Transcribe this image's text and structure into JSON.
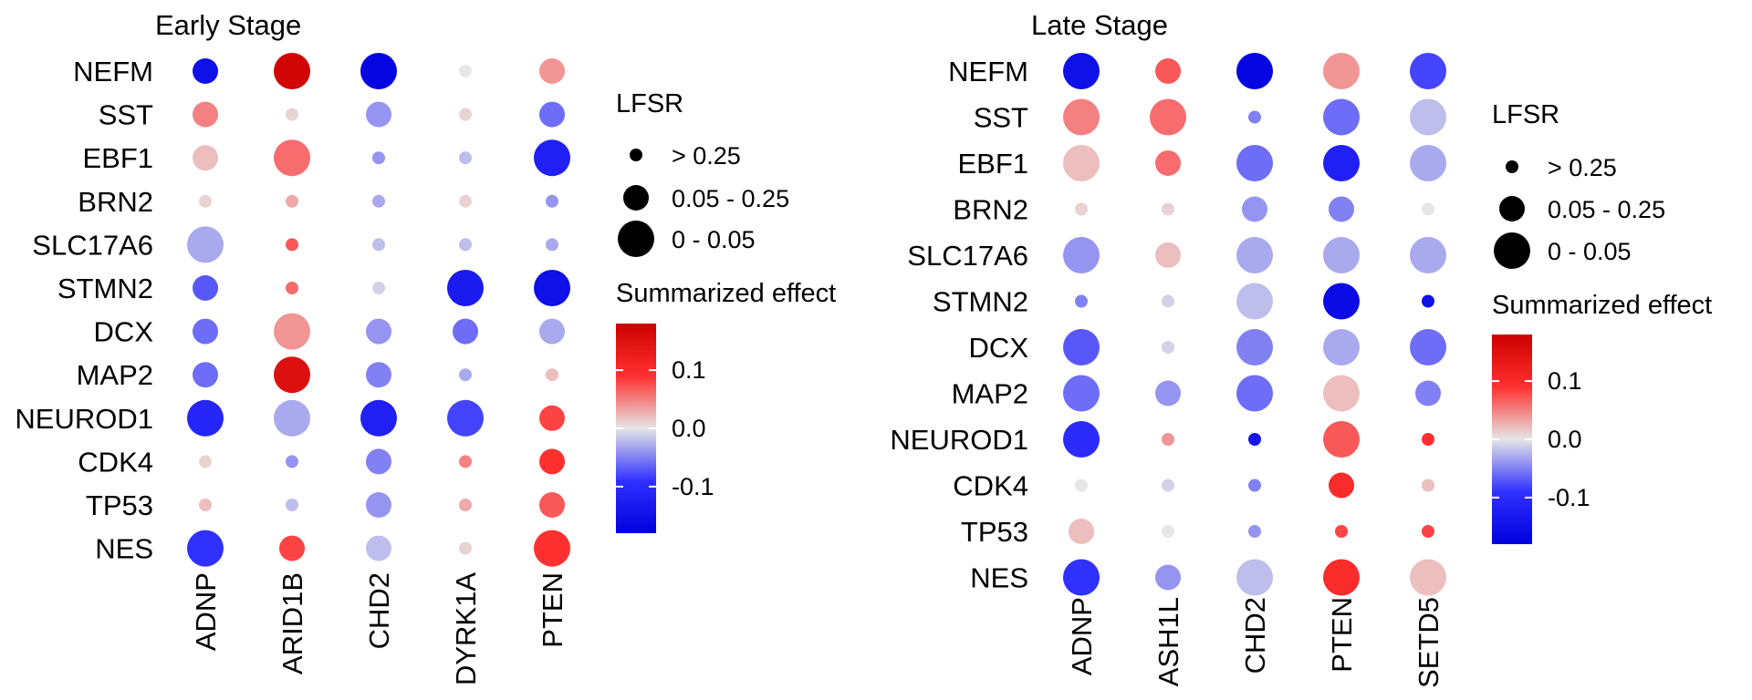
{
  "chart_data": [
    {
      "type": "dot-matrix",
      "title": "Early Stage",
      "rows": [
        "NEFM",
        "SST",
        "EBF1",
        "BRN2",
        "SLC17A6",
        "STMN2",
        "DCX",
        "MAP2",
        "NEUROD1",
        "CDK4",
        "TP53",
        "NES"
      ],
      "columns": [
        "ADNP",
        "ARID1B",
        "CHD2",
        "DYRK1A",
        "PTEN"
      ],
      "effect": [
        [
          -0.15,
          0.17,
          -0.17,
          0.0,
          0.04
        ],
        [
          0.05,
          0.01,
          -0.04,
          0.01,
          -0.06
        ],
        [
          0.02,
          0.06,
          -0.04,
          -0.02,
          -0.12
        ],
        [
          0.01,
          0.03,
          -0.03,
          0.01,
          -0.04
        ],
        [
          -0.03,
          0.07,
          -0.02,
          -0.02,
          -0.03
        ],
        [
          -0.07,
          0.06,
          -0.01,
          -0.13,
          -0.15
        ],
        [
          -0.06,
          0.04,
          -0.04,
          -0.06,
          -0.03
        ],
        [
          -0.06,
          0.15,
          -0.05,
          -0.03,
          0.02
        ],
        [
          -0.11,
          -0.03,
          -0.12,
          -0.08,
          0.08
        ],
        [
          0.01,
          -0.04,
          -0.05,
          0.05,
          0.09
        ],
        [
          0.02,
          -0.02,
          -0.04,
          0.03,
          0.07
        ],
        [
          -0.09,
          0.08,
          -0.02,
          0.01,
          0.09
        ]
      ],
      "lfsr": [
        [
          "0.05 - 0.25",
          "0 - 0.05",
          "0 - 0.05",
          "> 0.25",
          "0.05 - 0.25"
        ],
        [
          "0.05 - 0.25",
          "> 0.25",
          "0.05 - 0.25",
          "> 0.25",
          "0.05 - 0.25"
        ],
        [
          "0.05 - 0.25",
          "0 - 0.05",
          "> 0.25",
          "> 0.25",
          "0 - 0.05"
        ],
        [
          "> 0.25",
          "> 0.25",
          "> 0.25",
          "> 0.25",
          "> 0.25"
        ],
        [
          "0 - 0.05",
          "> 0.25",
          "> 0.25",
          "> 0.25",
          "> 0.25"
        ],
        [
          "0.05 - 0.25",
          "> 0.25",
          "> 0.25",
          "0 - 0.05",
          "0 - 0.05"
        ],
        [
          "0.05 - 0.25",
          "0 - 0.05",
          "0.05 - 0.25",
          "0.05 - 0.25",
          "0.05 - 0.25"
        ],
        [
          "0.05 - 0.25",
          "0 - 0.05",
          "0.05 - 0.25",
          "> 0.25",
          "> 0.25"
        ],
        [
          "0 - 0.05",
          "0 - 0.05",
          "0 - 0.05",
          "0 - 0.05",
          "0.05 - 0.25"
        ],
        [
          "> 0.25",
          "> 0.25",
          "0.05 - 0.25",
          "> 0.25",
          "0.05 - 0.25"
        ],
        [
          "> 0.25",
          "> 0.25",
          "0.05 - 0.25",
          "> 0.25",
          "0.05 - 0.25"
        ],
        [
          "0 - 0.05",
          "0.05 - 0.25",
          "0.05 - 0.25",
          "> 0.25",
          "0 - 0.05"
        ]
      ],
      "size_legend": {
        "title": "LFSR",
        "levels": [
          "> 0.25",
          "0.05 - 0.25",
          "0 - 0.05"
        ]
      },
      "color_legend": {
        "title": "Summarized effect",
        "range": [
          -0.18,
          0.18
        ],
        "ticks": [
          0.1,
          0.0,
          -0.1
        ],
        "tick_labels": [
          "0.1",
          "0.0",
          "-0.1"
        ],
        "low": "#0000dd",
        "mid": "#e6e6e6",
        "high": "#cc0000"
      }
    },
    {
      "type": "dot-matrix",
      "title": "Late Stage",
      "rows": [
        "NEFM",
        "SST",
        "EBF1",
        "BRN2",
        "SLC17A6",
        "STMN2",
        "DCX",
        "MAP2",
        "NEUROD1",
        "CDK4",
        "TP53",
        "NES"
      ],
      "columns": [
        "ADNP",
        "ASH1L",
        "CHD2",
        "PTEN",
        "SETD5"
      ],
      "effect": [
        [
          -0.15,
          0.07,
          -0.17,
          0.04,
          -0.08
        ],
        [
          0.05,
          0.06,
          -0.05,
          -0.06,
          -0.02
        ],
        [
          0.02,
          0.06,
          -0.06,
          -0.12,
          -0.03
        ],
        [
          0.01,
          0.01,
          -0.04,
          -0.05,
          0.0
        ],
        [
          -0.04,
          0.02,
          -0.03,
          -0.03,
          -0.03
        ],
        [
          -0.05,
          -0.01,
          -0.02,
          -0.16,
          -0.15
        ],
        [
          -0.07,
          -0.01,
          -0.05,
          -0.03,
          -0.06
        ],
        [
          -0.06,
          -0.04,
          -0.06,
          0.02,
          -0.05
        ],
        [
          -0.1,
          0.04,
          -0.14,
          0.07,
          0.09
        ],
        [
          0.0,
          -0.01,
          -0.05,
          0.1,
          0.02
        ],
        [
          0.02,
          0.0,
          -0.04,
          0.08,
          0.08
        ],
        [
          -0.09,
          -0.04,
          -0.02,
          0.1,
          0.02
        ]
      ],
      "lfsr": [
        [
          "0 - 0.05",
          "0.05 - 0.25",
          "0 - 0.05",
          "0 - 0.05",
          "0 - 0.05"
        ],
        [
          "0 - 0.05",
          "0 - 0.05",
          "> 0.25",
          "0 - 0.05",
          "0 - 0.05"
        ],
        [
          "0 - 0.05",
          "0.05 - 0.25",
          "0 - 0.05",
          "0 - 0.05",
          "0 - 0.05"
        ],
        [
          "> 0.25",
          "> 0.25",
          "0.05 - 0.25",
          "0.05 - 0.25",
          "> 0.25"
        ],
        [
          "0 - 0.05",
          "0.05 - 0.25",
          "0 - 0.05",
          "0 - 0.05",
          "0 - 0.05"
        ],
        [
          "> 0.25",
          "> 0.25",
          "0 - 0.05",
          "0 - 0.05",
          "> 0.25"
        ],
        [
          "0 - 0.05",
          "> 0.25",
          "0 - 0.05",
          "0 - 0.05",
          "0 - 0.05"
        ],
        [
          "0 - 0.05",
          "0.05 - 0.25",
          "0 - 0.05",
          "0 - 0.05",
          "0.05 - 0.25"
        ],
        [
          "0 - 0.05",
          "> 0.25",
          "> 0.25",
          "0 - 0.05",
          "> 0.25"
        ],
        [
          "> 0.25",
          "> 0.25",
          "> 0.25",
          "0.05 - 0.25",
          "> 0.25"
        ],
        [
          "0.05 - 0.25",
          "> 0.25",
          "> 0.25",
          "> 0.25",
          "> 0.25"
        ],
        [
          "0 - 0.05",
          "0.05 - 0.25",
          "0 - 0.05",
          "0 - 0.05",
          "0 - 0.05"
        ]
      ],
      "size_legend": {
        "title": "LFSR",
        "levels": [
          "> 0.25",
          "0.05 - 0.25",
          "0 - 0.05"
        ]
      },
      "color_legend": {
        "title": "Summarized effect",
        "range": [
          -0.18,
          0.18
        ],
        "ticks": [
          0.1,
          0.0,
          -0.1
        ],
        "tick_labels": [
          "0.1",
          "0.0",
          "-0.1"
        ],
        "low": "#0000dd",
        "mid": "#e6e6e6",
        "high": "#cc0000"
      }
    }
  ]
}
